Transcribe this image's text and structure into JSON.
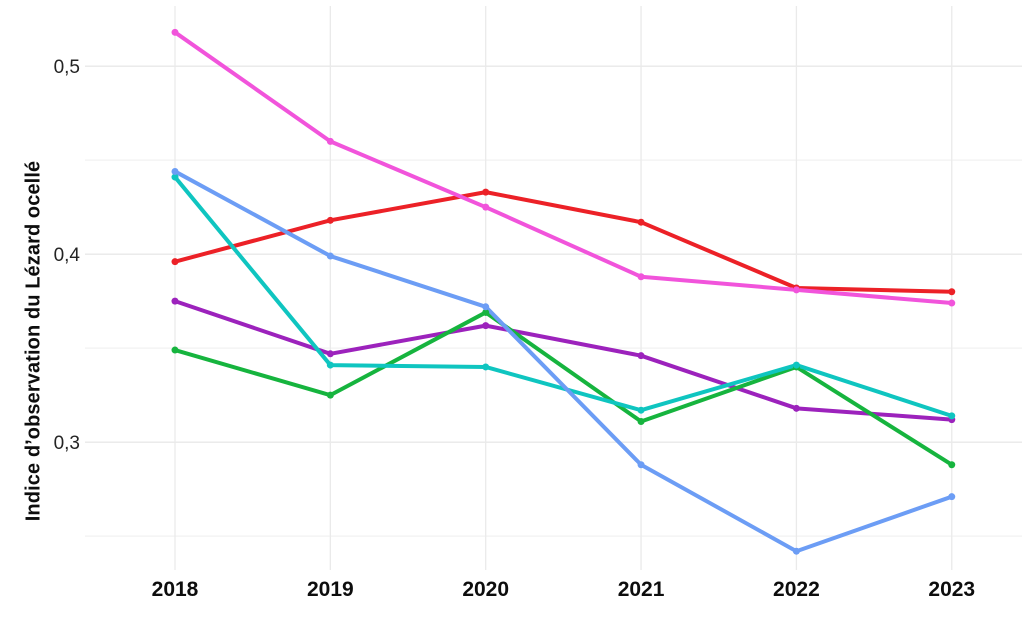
{
  "figure": {
    "background": "#ffffff"
  },
  "chart_data": {
    "type": "line",
    "title": "",
    "xlabel": "",
    "ylabel": "Indice d’observation du Lézard ocellé",
    "x": [
      2018,
      2019,
      2020,
      2021,
      2022,
      2023
    ],
    "x_labels": [
      "2018",
      "2019",
      "2020",
      "2021",
      "2022",
      "2023"
    ],
    "series": [
      {
        "name": "rouge",
        "color": "#EC2127",
        "values": [
          0.396,
          0.418,
          0.433,
          0.417,
          0.382,
          0.38
        ]
      },
      {
        "name": "rose",
        "color": "#F154DB",
        "values": [
          0.518,
          0.46,
          0.425,
          0.388,
          0.381,
          0.374
        ]
      },
      {
        "name": "violette",
        "color": "#9C22BC",
        "values": [
          0.375,
          0.347,
          0.362,
          0.346,
          0.318,
          0.312
        ]
      },
      {
        "name": "verte",
        "color": "#16B43E",
        "values": [
          0.349,
          0.325,
          0.369,
          0.311,
          0.34,
          0.288
        ]
      },
      {
        "name": "cyan",
        "color": "#0FC5C0",
        "values": [
          0.441,
          0.341,
          0.34,
          0.317,
          0.341,
          0.314
        ]
      },
      {
        "name": "bleue",
        "color": "#6C9DF5",
        "values": [
          0.444,
          0.399,
          0.372,
          0.288,
          0.242,
          0.271
        ]
      }
    ],
    "yticks": {
      "major": [
        0.5,
        0.4,
        0.3
      ],
      "major_labels": [
        "0,5",
        "0,4",
        "0,3"
      ],
      "minor": [
        0.45,
        0.35,
        0.25
      ]
    },
    "ylim": [
      0.232,
      0.532
    ],
    "grid": true,
    "legend": "none",
    "marker": "circle",
    "grid_major_color": "#e8e8e8",
    "grid_minor_color": "#f2f2f2",
    "axis_text_color": "#242424",
    "x_text_color": "#0d0d0d"
  }
}
